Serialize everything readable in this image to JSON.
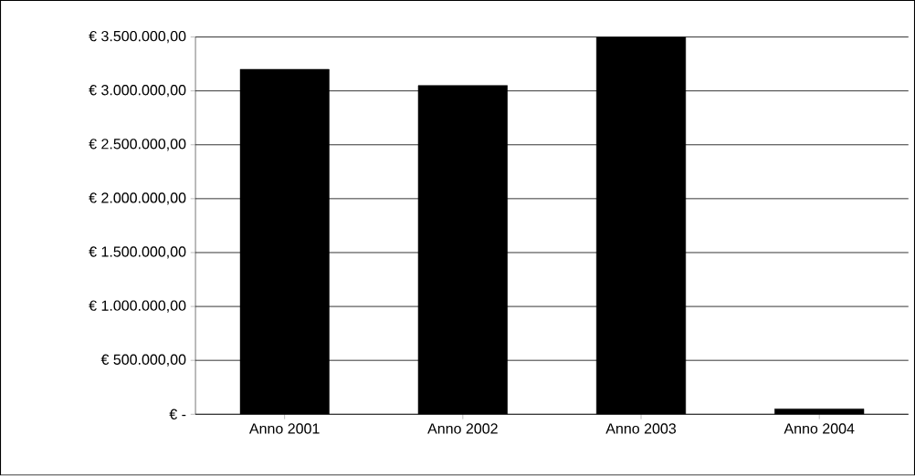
{
  "chart_data": {
    "type": "bar",
    "categories": [
      "Anno 2001",
      "Anno 2002",
      "Anno 2003",
      "Anno 2004"
    ],
    "values": [
      3200000,
      3050000,
      3500000,
      50000
    ],
    "color": "#000000",
    "ylim": [
      0,
      3500000
    ],
    "yticks": [
      {
        "value": 0,
        "label": "€ -"
      },
      {
        "value": 500000,
        "label": "€ 500.000,00"
      },
      {
        "value": 1000000,
        "label": "€ 1.000.000,00"
      },
      {
        "value": 1500000,
        "label": "€ 1.500.000,00"
      },
      {
        "value": 2000000,
        "label": "€ 2.000.000,00"
      },
      {
        "value": 2500000,
        "label": "€ 2.500.000,00"
      },
      {
        "value": 3000000,
        "label": "€ 3.000.000,00"
      },
      {
        "value": 3500000,
        "label": "€ 3.500.000,00"
      }
    ],
    "grid": "y"
  }
}
